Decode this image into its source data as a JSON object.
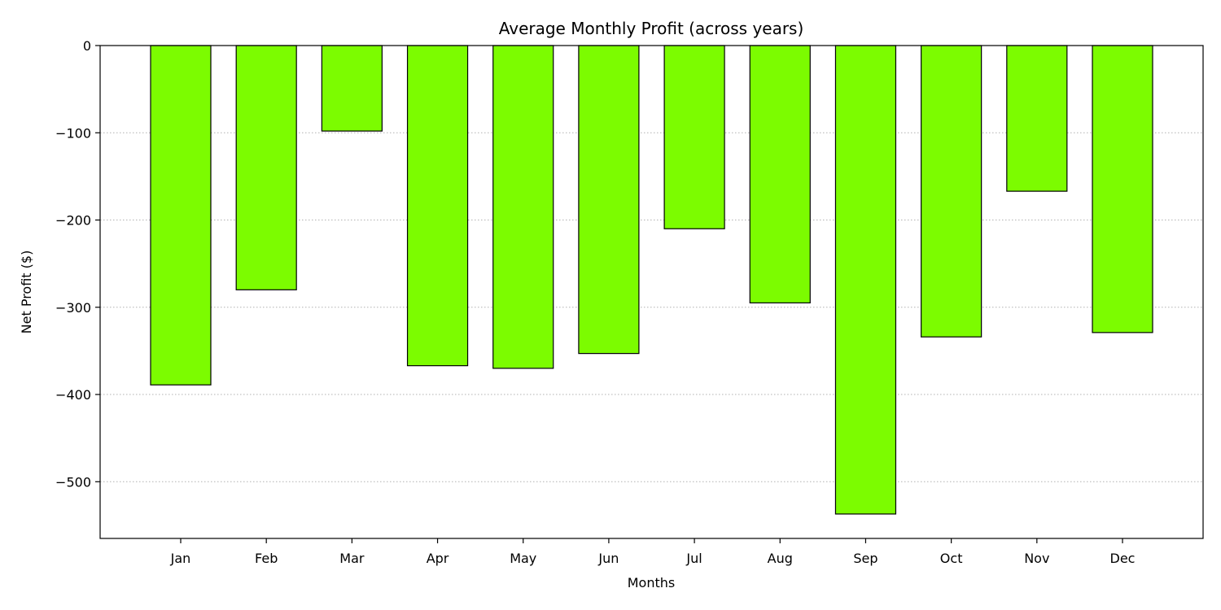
{
  "chart_data": {
    "type": "bar",
    "title": "Average Monthly Profit (across years)",
    "xlabel": "Months",
    "ylabel": "Net Profit ($)",
    "categories": [
      "Jan",
      "Feb",
      "Mar",
      "Apr",
      "May",
      "Jun",
      "Jul",
      "Aug",
      "Sep",
      "Oct",
      "Nov",
      "Dec"
    ],
    "values": [
      -389,
      -280,
      -98,
      -367,
      -370,
      -353,
      -210,
      -295,
      -537,
      -334,
      -167,
      -329
    ],
    "ylim": [
      -565,
      0
    ],
    "yticks": [
      0,
      -100,
      -200,
      -300,
      -400,
      -500
    ],
    "ytick_labels": [
      "0",
      "−100",
      "−200",
      "−300",
      "−400",
      "−500"
    ],
    "grid": "y-dotted",
    "bar_color": "#7CFC00",
    "edge_color": "#000000",
    "grid_color": "#b0b0b0"
  }
}
